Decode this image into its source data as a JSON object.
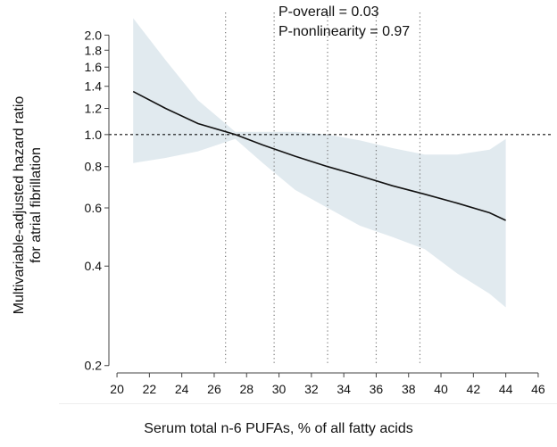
{
  "chart_data": {
    "type": "line",
    "xlabel": "Serum total n-6 PUFAs, % of all fatty acids",
    "ylabel_line1": "Multivariable-adjusted hazard ratio",
    "ylabel_line2": "for atrial fibrillation",
    "annotations": [
      "P-overall = 0.03",
      "P-nonlinearity = 0.97"
    ],
    "x_ticks": [
      20,
      22,
      24,
      26,
      28,
      30,
      32,
      34,
      36,
      38,
      40,
      42,
      44,
      46
    ],
    "y_ticks": [
      0.2,
      0.4,
      0.6,
      0.8,
      1.0,
      1.2,
      1.4,
      1.6,
      1.8,
      2.0
    ],
    "y_tick_labels": [
      "0.2",
      "0.4",
      "0.6",
      "0.8",
      "1.0",
      "1.2",
      "1.4",
      "1.6",
      "1.8",
      "2.0"
    ],
    "y_scale": "log",
    "xlim": [
      19.5,
      46.5
    ],
    "ylim": [
      0.19,
      2.4
    ],
    "reference_line_y": 1.0,
    "knots_x": [
      26.7,
      29.7,
      33.0,
      36.0,
      38.7
    ],
    "series": [
      {
        "x": [
          21,
          23,
          25,
          27.3,
          29,
          31,
          33,
          35,
          37,
          39,
          41,
          43,
          44
        ],
        "y": [
          1.35,
          1.2,
          1.08,
          1.0,
          0.93,
          0.86,
          0.8,
          0.75,
          0.7,
          0.66,
          0.62,
          0.58,
          0.55
        ]
      }
    ],
    "ci_band": {
      "x": [
        21,
        23,
        25,
        27.3,
        29,
        31,
        33,
        35,
        37,
        39,
        41,
        43,
        44
      ],
      "lower": [
        0.82,
        0.85,
        0.89,
        0.97,
        0.82,
        0.68,
        0.6,
        0.53,
        0.49,
        0.45,
        0.38,
        0.33,
        0.3
      ],
      "upper": [
        2.25,
        1.68,
        1.27,
        1.02,
        1.02,
        1.02,
        1.0,
        0.96,
        0.91,
        0.87,
        0.87,
        0.9,
        0.97
      ]
    },
    "colors": {
      "band": "#e1eaef",
      "line": "#111111",
      "axis": "#444444"
    }
  }
}
